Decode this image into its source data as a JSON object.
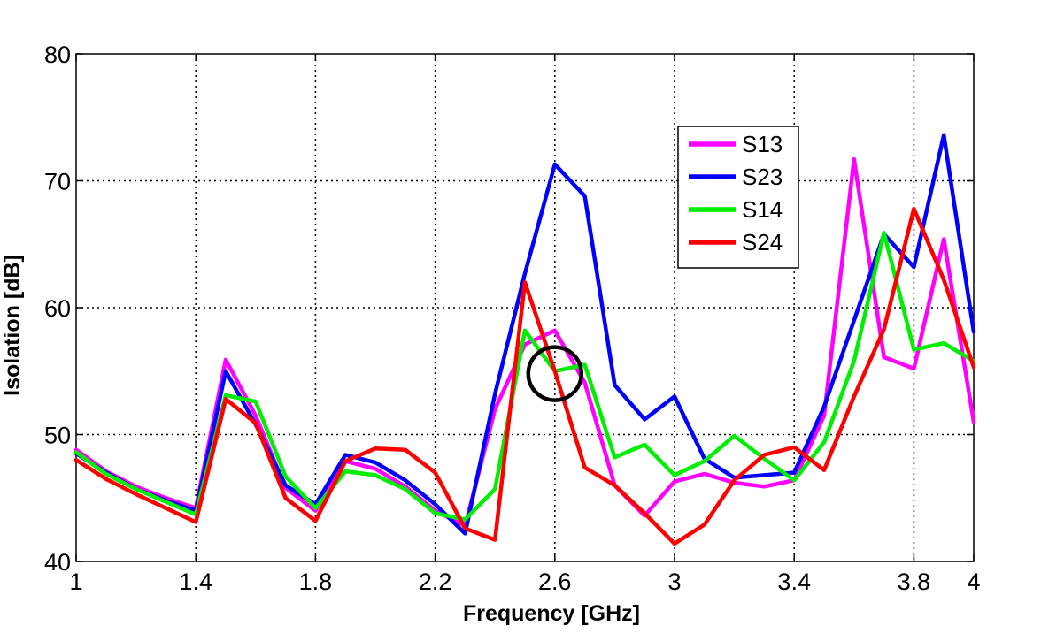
{
  "chart_data": {
    "type": "line",
    "title": "",
    "xlabel": "Frequency [GHz]",
    "ylabel": "Isolation [dB]",
    "xlim": [
      1,
      4
    ],
    "ylim": [
      40,
      80
    ],
    "xticks": [
      1,
      1.4,
      1.8,
      2.2,
      2.6,
      3,
      3.4,
      3.8,
      4
    ],
    "xtick_labels": [
      "1",
      "1.4",
      "1.8",
      "2.2",
      "2.6",
      "3",
      "3.4",
      "3.8",
      "4"
    ],
    "yticks": [
      40,
      50,
      60,
      70,
      80
    ],
    "ytick_labels": [
      "40",
      "50",
      "60",
      "70",
      "80"
    ],
    "grid": true,
    "legend_position": "top-right",
    "x": [
      1.0,
      1.1,
      1.2,
      1.3,
      1.4,
      1.5,
      1.6,
      1.7,
      1.8,
      1.9,
      2.0,
      2.1,
      2.2,
      2.3,
      2.4,
      2.5,
      2.6,
      2.7,
      2.8,
      2.9,
      3.0,
      3.1,
      3.2,
      3.3,
      3.4,
      3.5,
      3.6,
      3.7,
      3.8,
      3.9,
      4.0
    ],
    "series": [
      {
        "name": "S13",
        "color": "#ff00ff",
        "values": [
          48.8,
          47.1,
          45.9,
          45.0,
          44.2,
          55.9,
          51.5,
          45.8,
          44.0,
          47.9,
          47.3,
          45.9,
          44.0,
          42.8,
          52.0,
          57.1,
          58.2,
          54.1,
          46.0,
          43.6,
          46.3,
          46.9,
          46.2,
          45.9,
          46.4,
          51.5,
          71.7,
          56.1,
          55.2,
          65.4,
          51.0
        ]
      },
      {
        "name": "S23",
        "color": "#0000ff",
        "values": [
          48.5,
          47.0,
          45.7,
          44.8,
          44.0,
          55.0,
          50.8,
          46.0,
          44.5,
          48.4,
          47.8,
          46.4,
          44.5,
          42.2,
          53.2,
          62.7,
          71.3,
          68.8,
          53.9,
          51.2,
          53.0,
          48.1,
          46.6,
          46.8,
          47.0,
          52.2,
          59.0,
          65.8,
          63.2,
          73.6,
          58.1
        ]
      },
      {
        "name": "S14",
        "color": "#00ee00",
        "values": [
          48.6,
          46.9,
          45.7,
          44.7,
          43.7,
          53.1,
          52.6,
          46.7,
          44.2,
          47.1,
          46.8,
          45.7,
          43.8,
          43.3,
          45.7,
          58.2,
          55.0,
          55.5,
          48.2,
          49.2,
          46.8,
          47.9,
          49.9,
          48.1,
          46.4,
          49.4,
          55.8,
          65.9,
          56.7,
          57.2,
          55.8
        ]
      },
      {
        "name": "S24",
        "color": "#ff0000",
        "values": [
          48.0,
          46.5,
          45.3,
          44.2,
          43.1,
          52.8,
          50.9,
          45.0,
          43.2,
          47.9,
          48.9,
          48.8,
          47.0,
          42.6,
          41.7,
          62.0,
          55.0,
          47.4,
          46.0,
          43.8,
          41.4,
          42.9,
          46.4,
          48.4,
          49.0,
          47.2,
          53.0,
          58.3,
          67.8,
          62.2,
          55.3
        ]
      }
    ],
    "annotations": [
      {
        "shape": "circle",
        "x": 2.6,
        "y": 54.8
      }
    ]
  }
}
